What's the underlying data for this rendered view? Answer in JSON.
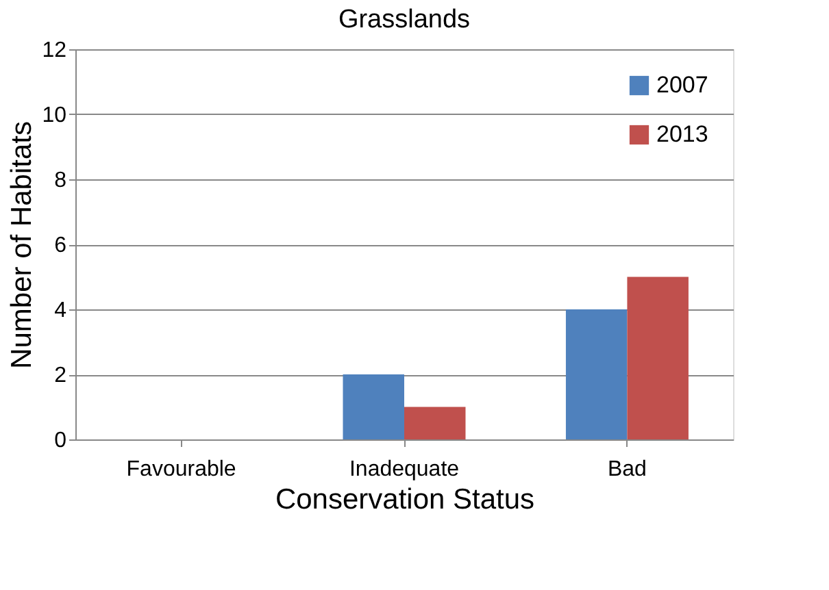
{
  "chart_data": {
    "type": "bar",
    "title": "Grasslands",
    "xlabel": "Conservation Status",
    "ylabel": "Number of Habitats",
    "categories": [
      "Favourable",
      "Inadequate",
      "Bad"
    ],
    "series": [
      {
        "name": "2007",
        "color": "#4f81bd",
        "values": [
          0,
          2,
          4
        ]
      },
      {
        "name": "2013",
        "color": "#c0504d",
        "values": [
          0,
          1,
          5
        ]
      }
    ],
    "ylim": [
      0,
      12
    ],
    "yticks": [
      0,
      2,
      4,
      6,
      8,
      10,
      12
    ],
    "grid": "y",
    "legend": "top right"
  }
}
